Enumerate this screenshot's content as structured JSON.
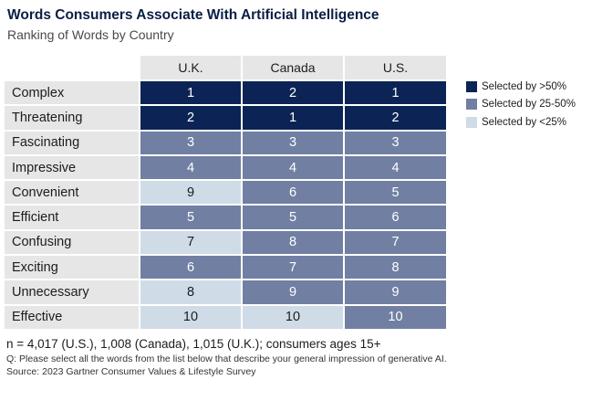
{
  "chart_data": {
    "type": "table",
    "title": "Words Consumers Associate With Artificial Intelligence",
    "subtitle": "Ranking of Words by Country",
    "columns": [
      "U.K.",
      "Canada",
      "U.S."
    ],
    "rows": [
      {
        "word": "Complex",
        "ranks": [
          1,
          2,
          1
        ],
        "tiers": [
          "high",
          "high",
          "high"
        ]
      },
      {
        "word": "Threatening",
        "ranks": [
          2,
          1,
          2
        ],
        "tiers": [
          "high",
          "high",
          "high"
        ]
      },
      {
        "word": "Fascinating",
        "ranks": [
          3,
          3,
          3
        ],
        "tiers": [
          "mid",
          "mid",
          "mid"
        ]
      },
      {
        "word": "Impressive",
        "ranks": [
          4,
          4,
          4
        ],
        "tiers": [
          "mid",
          "mid",
          "mid"
        ]
      },
      {
        "word": "Convenient",
        "ranks": [
          9,
          6,
          5
        ],
        "tiers": [
          "low",
          "mid",
          "mid"
        ]
      },
      {
        "word": "Efficient",
        "ranks": [
          5,
          5,
          6
        ],
        "tiers": [
          "mid",
          "mid",
          "mid"
        ]
      },
      {
        "word": "Confusing",
        "ranks": [
          7,
          8,
          7
        ],
        "tiers": [
          "low",
          "mid",
          "mid"
        ]
      },
      {
        "word": "Exciting",
        "ranks": [
          6,
          7,
          8
        ],
        "tiers": [
          "mid",
          "mid",
          "mid"
        ]
      },
      {
        "word": "Unnecessary",
        "ranks": [
          8,
          9,
          9
        ],
        "tiers": [
          "low",
          "mid",
          "mid"
        ]
      },
      {
        "word": "Effective",
        "ranks": [
          10,
          10,
          10
        ],
        "tiers": [
          "low",
          "low",
          "mid"
        ]
      }
    ],
    "legend": [
      {
        "tier": "high",
        "label": "Selected by >50%",
        "color": "#0b2455"
      },
      {
        "tier": "mid",
        "label": "Selected by 25-50%",
        "color": "#717fa3"
      },
      {
        "tier": "low",
        "label": "Selected by <25%",
        "color": "#cfdbe7"
      }
    ],
    "legend_position": "right"
  },
  "footer": {
    "sample_note": "n = 4,017 (U.S.), 1,008 (Canada), 1,015 (U.K.); consumers ages 15+",
    "question": "Q:  Please select all the words from the list below that describe your general impression of generative AI.",
    "source": "Source: 2023 Gartner Consumer Values & Lifestyle Survey"
  }
}
